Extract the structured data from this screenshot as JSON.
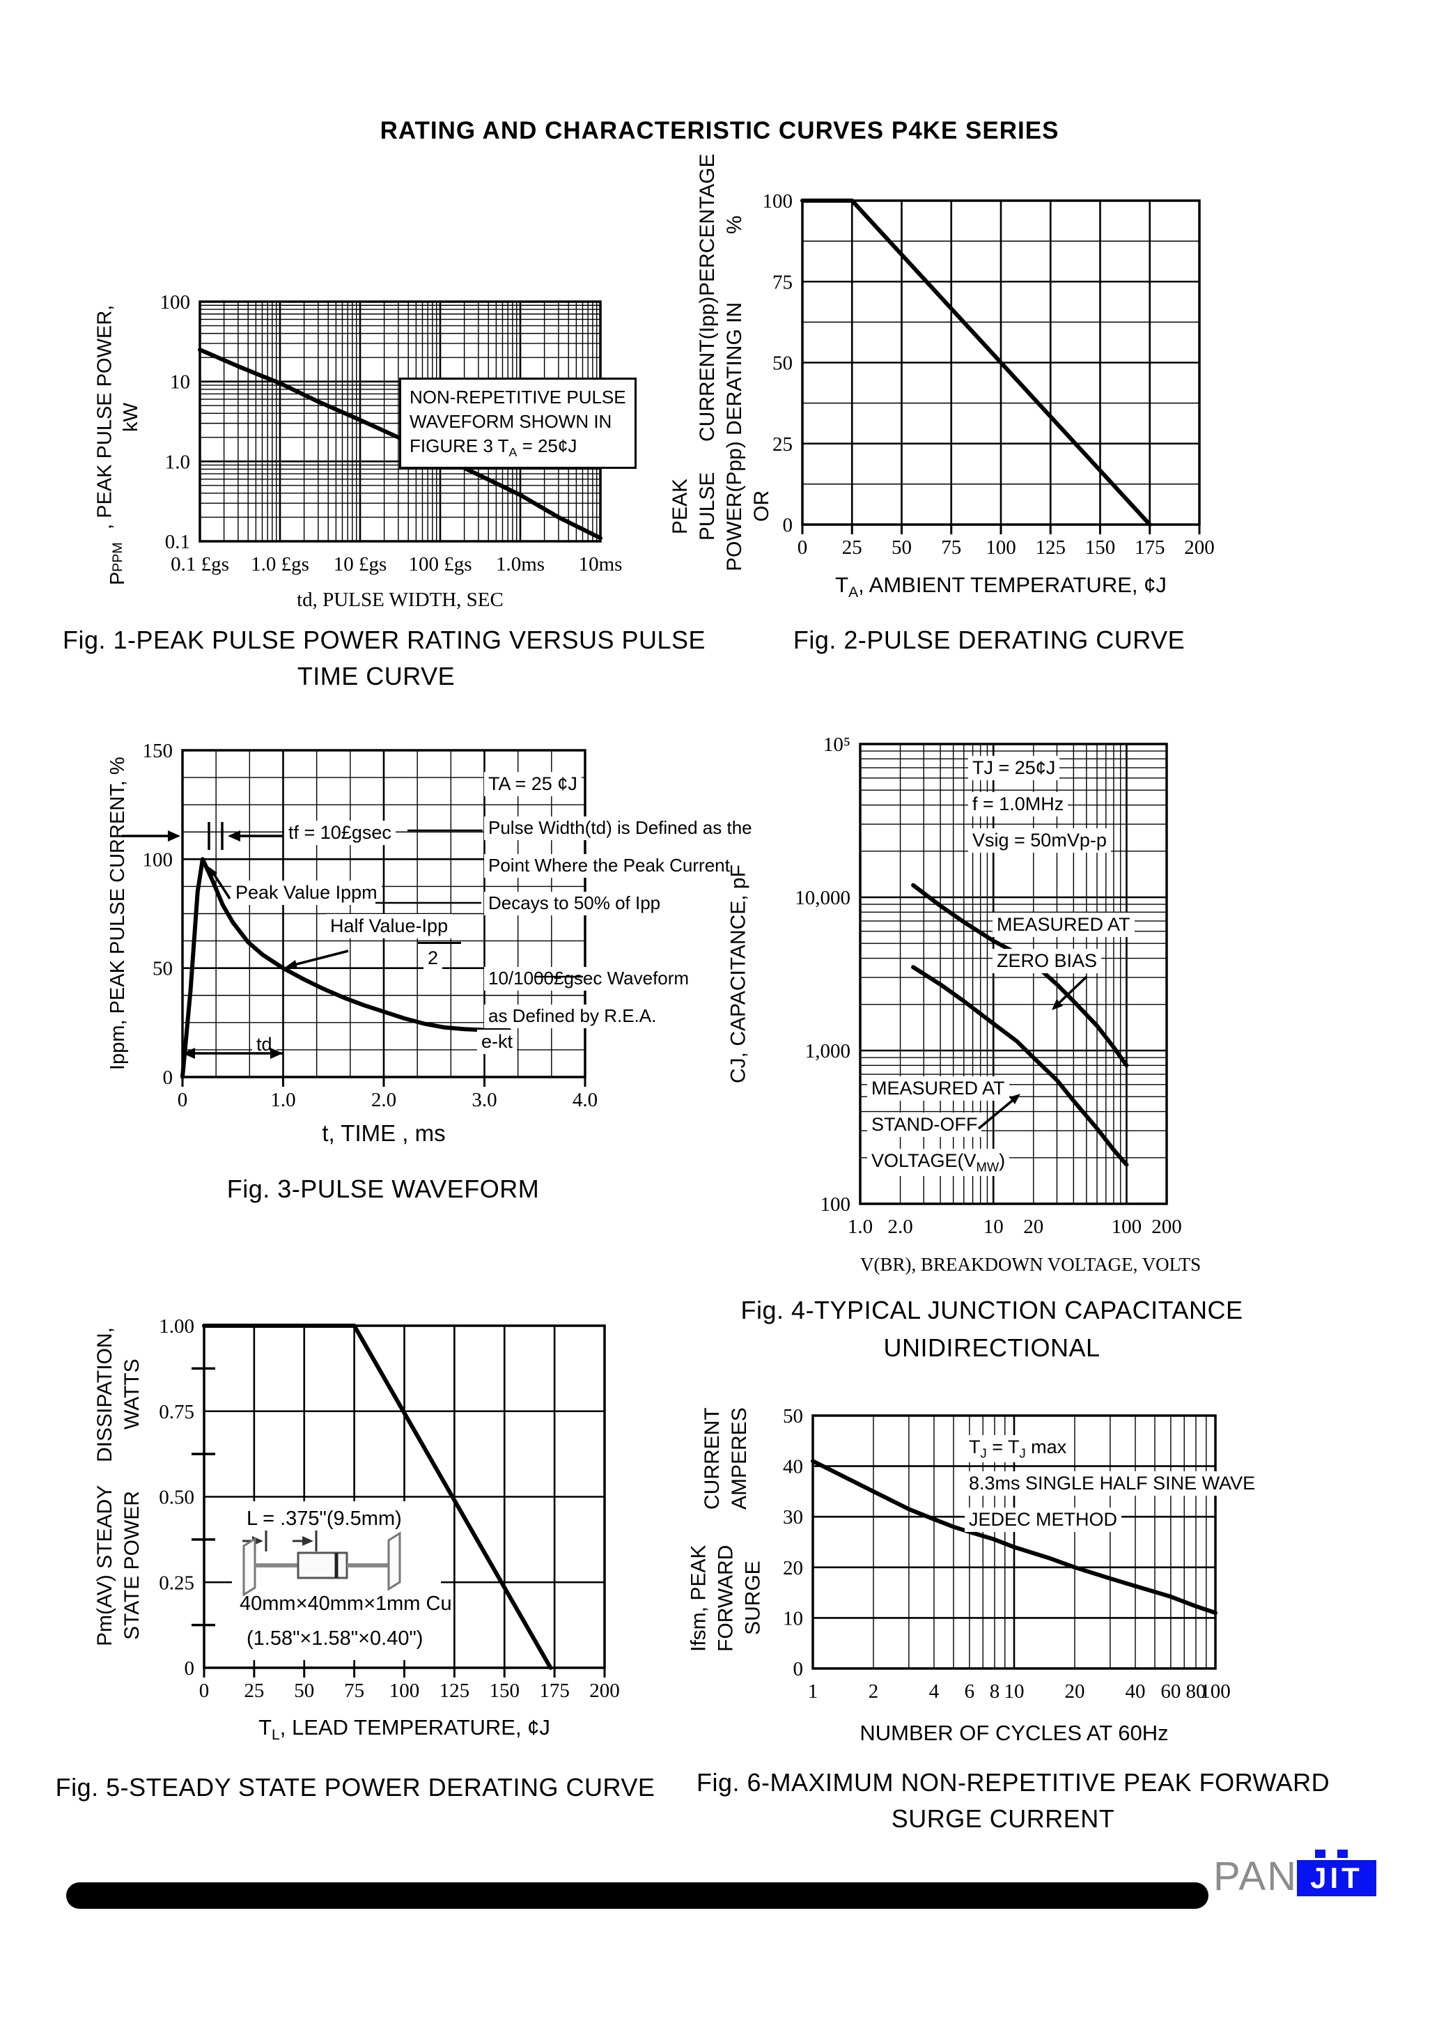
{
  "page": {
    "title": "RATING AND CHARACTERISTIC CURVES P4KE SERIES"
  },
  "footer": {
    "logo_gray": "PAN",
    "logo_blue": "JIT"
  },
  "chart_data": [
    {
      "caption": [
        "Fig. 1-PEAK PULSE POWER RATING VERSUS PULSE",
        "TIME CURVE"
      ],
      "xlabel": "td, PULSE WIDTH, SEC",
      "ylabel": "P~PPM~, PEAK PULSE POWER, kW",
      "annotations": {
        "box": [
          "NON-REPETITIVE PULSE",
          "WAVEFORM SHOWN IN",
          "FIGURE 3 T~A~ = 25¢J"
        ]
      },
      "chart": {
        "type": "line",
        "x": {
          "scale": "log",
          "min": 1e-07,
          "max": 0.01,
          "ticks": [
            [
              1e-07,
              "0.1 £gs"
            ],
            [
              1e-06,
              "1.0 £gs"
            ],
            [
              1e-05,
              "10 £gs"
            ],
            [
              0.0001,
              "100 £gs"
            ],
            [
              0.001,
              "1.0ms"
            ],
            [
              0.01,
              "10ms"
            ]
          ]
        },
        "y": {
          "scale": "log",
          "min": 0.1,
          "max": 100,
          "ticks": [
            [
              100,
              "100"
            ],
            [
              10,
              "10"
            ],
            [
              1,
              "1.0"
            ],
            [
              0.1,
              "0.1"
            ]
          ]
        },
        "series": [
          {
            "name": "peak pulse power rating",
            "points": [
              [
                1e-07,
                25
              ],
              [
                3e-07,
                15.5
              ],
              [
                1e-06,
                9.5
              ],
              [
                3e-06,
                5.6
              ],
              [
                1e-05,
                3.3
              ],
              [
                3e-05,
                2.0
              ],
              [
                0.0001,
                1.15
              ],
              [
                0.0003,
                0.68
              ],
              [
                0.001,
                0.38
              ],
              [
                0.003,
                0.2
              ],
              [
                0.01,
                0.11
              ]
            ]
          }
        ]
      }
    },
    {
      "caption": [
        "Fig. 2-PULSE DERATING CURVE"
      ],
      "xlabel": "T~A~, AMBIENT TEMPERATURE,  ¢J",
      "ylabel": [
        "PEAK PULSE POWER(Ppp) OR",
        "CURRENT(Ipp) DERATING IN",
        "PERCENTAGE %"
      ],
      "annotations": {},
      "chart": {
        "type": "line",
        "x": {
          "scale": "linear",
          "min": 0,
          "max": 200,
          "grid_major": 25,
          "stubs": true,
          "ticks": [
            [
              0,
              "0"
            ],
            [
              25,
              "25"
            ],
            [
              50,
              "50"
            ],
            [
              75,
              "75"
            ],
            [
              100,
              "100"
            ],
            [
              125,
              "125"
            ],
            [
              150,
              "150"
            ],
            [
              175,
              "175"
            ],
            [
              200,
              "200"
            ]
          ]
        },
        "y": {
          "scale": "linear",
          "min": 0,
          "max": 100,
          "grid_major": 25,
          "grid_minor": 12.5,
          "ticks": [
            [
              0,
              "0"
            ],
            [
              25,
              "25"
            ],
            [
              50,
              "50"
            ],
            [
              75,
              "75"
            ],
            [
              100,
              "100"
            ]
          ]
        },
        "series": [
          {
            "name": "derating",
            "points": [
              [
                0,
                100
              ],
              [
                25,
                100
              ],
              [
                175,
                0
              ]
            ]
          }
        ]
      }
    },
    {
      "caption": [
        "Fig. 3-PULSE WAVEFORM"
      ],
      "xlabel": "t, TIME , ms",
      "ylabel": "Ippm, PEAK PULSE CURRENT, %",
      "annotations": {
        "ta": "TA = 25 ¢J",
        "tf": "tf = 10£gsec",
        "def1": "Pulse Width(td) is Defined as the",
        "def2": "Point Where the Peak Current",
        "def3": "Decays to 50% of Ipp",
        "peak": "Peak Value Ippm",
        "half1": "Half Value-Ipp",
        "half2": "2",
        "wave1": "10/1000£gsec Waveform",
        "wave2": "as Defined by R.E.A.",
        "ekt": "e-kt",
        "td": "td"
      },
      "chart": {
        "type": "line",
        "x": {
          "scale": "linear",
          "min": 0,
          "max": 4,
          "grid_major": 1,
          "grid_minor": 0.3333333,
          "stubs": true,
          "ticks": [
            [
              0,
              "0"
            ],
            [
              1,
              "1.0"
            ],
            [
              2,
              "2.0"
            ],
            [
              3,
              "3.0"
            ],
            [
              4,
              "4.0"
            ]
          ]
        },
        "y": {
          "scale": "linear",
          "min": 0,
          "max": 150,
          "grid_major": 50,
          "grid_minor": 12.5,
          "ticks": [
            [
              0,
              "0"
            ],
            [
              50,
              "50"
            ],
            [
              100,
              "100"
            ],
            [
              150,
              "150"
            ]
          ]
        },
        "series": [
          {
            "name": "10/1000us pulse waveform",
            "points": [
              [
                0,
                0
              ],
              [
                0.08,
                40
              ],
              [
                0.15,
                85
              ],
              [
                0.2,
                100
              ],
              [
                0.3,
                90
              ],
              [
                0.4,
                79
              ],
              [
                0.5,
                71
              ],
              [
                0.65,
                62
              ],
              [
                0.8,
                56
              ],
              [
                1.0,
                50
              ],
              [
                1.2,
                45
              ],
              [
                1.4,
                40.5
              ],
              [
                1.6,
                36.5
              ],
              [
                1.8,
                33
              ],
              [
                2.0,
                30
              ],
              [
                2.2,
                27
              ],
              [
                2.4,
                24.5
              ],
              [
                2.6,
                22.8
              ],
              [
                2.8,
                22
              ],
              [
                3.0,
                21.6
              ],
              [
                3.25,
                21.4
              ]
            ]
          }
        ]
      }
    },
    {
      "caption": [
        "Fig. 4-TYPICAL JUNCTION CAPACITANCE",
        "UNIDIRECTIONAL"
      ],
      "xlabel": "V(BR), BREAKDOWN VOLTAGE, VOLTS",
      "ylabel": "CJ, CAPACITANCE, pF",
      "annotations": {
        "cond1": "TJ = 25¢J",
        "cond2": "f = 1.0MHz",
        "cond3": "Vsig = 50mVp-p",
        "zb1": "MEASURED AT",
        "zb2": "ZERO BIAS",
        "so1": "MEASURED AT",
        "so2": "STAND-OFF",
        "so3": "VOLTAGE(V~MW~)"
      },
      "chart": {
        "type": "line",
        "x": {
          "scale": "log",
          "min": 1,
          "max": 200,
          "ticks": [
            [
              1,
              "1.0"
            ],
            [
              2,
              "2.0"
            ],
            [
              10,
              "10"
            ],
            [
              20,
              "20"
            ],
            [
              100,
              "100"
            ],
            [
              200,
              "200"
            ]
          ]
        },
        "y": {
          "scale": "log",
          "min": 100,
          "max": 100000,
          "ticks": [
            [
              100,
              "100"
            ],
            [
              1000,
              "1,000"
            ],
            [
              10000,
              "10,000"
            ],
            [
              100000,
              "10⁵"
            ]
          ]
        },
        "series": [
          {
            "name": "measured at zero bias",
            "points": [
              [
                2.5,
                12000
              ],
              [
                4,
                8800
              ],
              [
                6,
                6900
              ],
              [
                10,
                5200
              ],
              [
                15,
                4300
              ],
              [
                20,
                3700
              ],
              [
                30,
                2700
              ],
              [
                40,
                2100
              ],
              [
                60,
                1450
              ],
              [
                80,
                1050
              ],
              [
                100,
                800
              ]
            ]
          },
          {
            "name": "measured at stand-off voltage",
            "points": [
              [
                2.5,
                3500
              ],
              [
                4,
                2700
              ],
              [
                6,
                2100
              ],
              [
                10,
                1500
              ],
              [
                15,
                1150
              ],
              [
                20,
                900
              ],
              [
                30,
                640
              ],
              [
                40,
                470
              ],
              [
                60,
                310
              ],
              [
                80,
                225
              ],
              [
                100,
                180
              ]
            ]
          }
        ]
      }
    },
    {
      "caption": [
        "Fig. 5-STEADY STATE POWER DERATING CURVE"
      ],
      "xlabel": "T~L~, LEAD TEMPERATURE,  ¢J",
      "ylabel": [
        "Pm(AV) STEADY STATE POWER",
        "DISSIPATION, WATTS"
      ],
      "annotations": {
        "l_dim": "L = .375\"(9.5mm)",
        "cu": "40mm×40mm×1mm Cu",
        "inch": "(1.58\"×1.58\"×0.40\")"
      },
      "chart": {
        "type": "line",
        "x": {
          "scale": "linear",
          "min": 0,
          "max": 200,
          "grid_major": 25,
          "stubs": true,
          "ticks": [
            [
              0,
              "0"
            ],
            [
              25,
              "25"
            ],
            [
              50,
              "50"
            ],
            [
              75,
              "75"
            ],
            [
              100,
              "100"
            ],
            [
              125,
              "125"
            ],
            [
              150,
              "150"
            ],
            [
              175,
              "175"
            ],
            [
              200,
              "200"
            ]
          ]
        },
        "y": {
          "scale": "linear",
          "min": 0,
          "max": 1,
          "grid_major": 0.25,
          "grid_minor": 0.125,
          "minor_style": "stub",
          "ticks": [
            [
              0,
              "0"
            ],
            [
              0.25,
              "0.25"
            ],
            [
              0.5,
              "0.50"
            ],
            [
              0.75,
              "0.75"
            ],
            [
              1,
              "1.00"
            ]
          ]
        },
        "series": [
          {
            "name": "steady state power derating",
            "points": [
              [
                0,
                1
              ],
              [
                75,
                1
              ],
              [
                173,
                0
              ]
            ]
          }
        ]
      }
    },
    {
      "caption": [
        "Fig. 6-MAXIMUM NON-REPETITIVE PEAK FORWARD",
        "SURGE CURRENT"
      ],
      "xlabel": "NUMBER OF CYCLES AT 60Hz",
      "ylabel": [
        "Ifsm, PEAK FORWARD SURGE",
        "CURRENT AMPERES"
      ],
      "annotations": {
        "c1": "T~J~ = T~J~ max",
        "c2": "8.3ms SINGLE HALF SINE WAVE",
        "c3": "JEDEC METHOD"
      },
      "chart": {
        "type": "line",
        "x": {
          "scale": "log",
          "min": 1,
          "max": 100,
          "ticks": [
            [
              1,
              "1"
            ],
            [
              2,
              "2"
            ],
            [
              4,
              "4"
            ],
            [
              6,
              "6"
            ],
            [
              8,
              "8"
            ],
            [
              10,
              "10"
            ],
            [
              20,
              "20"
            ],
            [
              40,
              "40"
            ],
            [
              60,
              "60"
            ],
            [
              80,
              "80"
            ],
            [
              100,
              "100"
            ]
          ]
        },
        "y": {
          "scale": "linear",
          "min": 0,
          "max": 50,
          "grid_major": 10,
          "ticks": [
            [
              0,
              "0"
            ],
            [
              10,
              "10"
            ],
            [
              20,
              "20"
            ],
            [
              30,
              "30"
            ],
            [
              40,
              "40"
            ],
            [
              50,
              "50"
            ]
          ]
        },
        "series": [
          {
            "name": "peak forward surge current",
            "points": [
              [
                1,
                41
              ],
              [
                1.5,
                37.5
              ],
              [
                2,
                35
              ],
              [
                3,
                31.5
              ],
              [
                4,
                29.5
              ],
              [
                5,
                28
              ],
              [
                6,
                27
              ],
              [
                8,
                25.5
              ],
              [
                10,
                24
              ],
              [
                15,
                21.8
              ],
              [
                20,
                20
              ],
              [
                30,
                17.8
              ],
              [
                40,
                16.3
              ],
              [
                60,
                14.2
              ],
              [
                80,
                12.3
              ],
              [
                100,
                11
              ]
            ]
          }
        ]
      }
    }
  ]
}
